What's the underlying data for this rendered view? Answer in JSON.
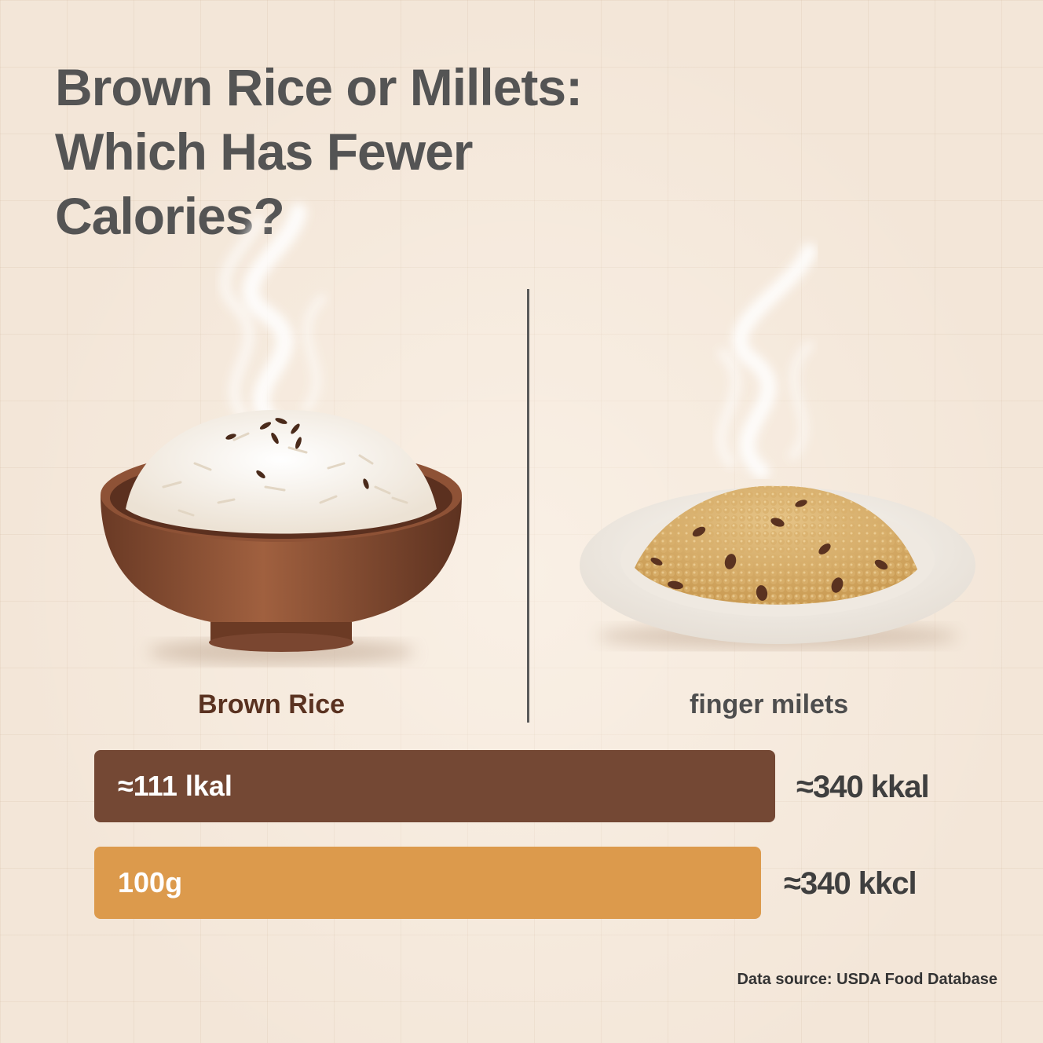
{
  "title": {
    "line1": "Brown Rice or Millets:",
    "line2": "Which Has Fewer",
    "line3": "Calories?"
  },
  "foods": {
    "left": {
      "label": "Brown Rice",
      "image": "rice-bowl"
    },
    "right": {
      "label": "finger milets",
      "image": "millet-plate"
    }
  },
  "bars": [
    {
      "text": "≈111 lkal",
      "side_value": "≈340 kkal",
      "color": "#744834"
    },
    {
      "text": "100g",
      "side_value": "≈340 kkcl",
      "color": "#dc9a4c"
    }
  ],
  "source": "Data source: USDA Food Database"
}
